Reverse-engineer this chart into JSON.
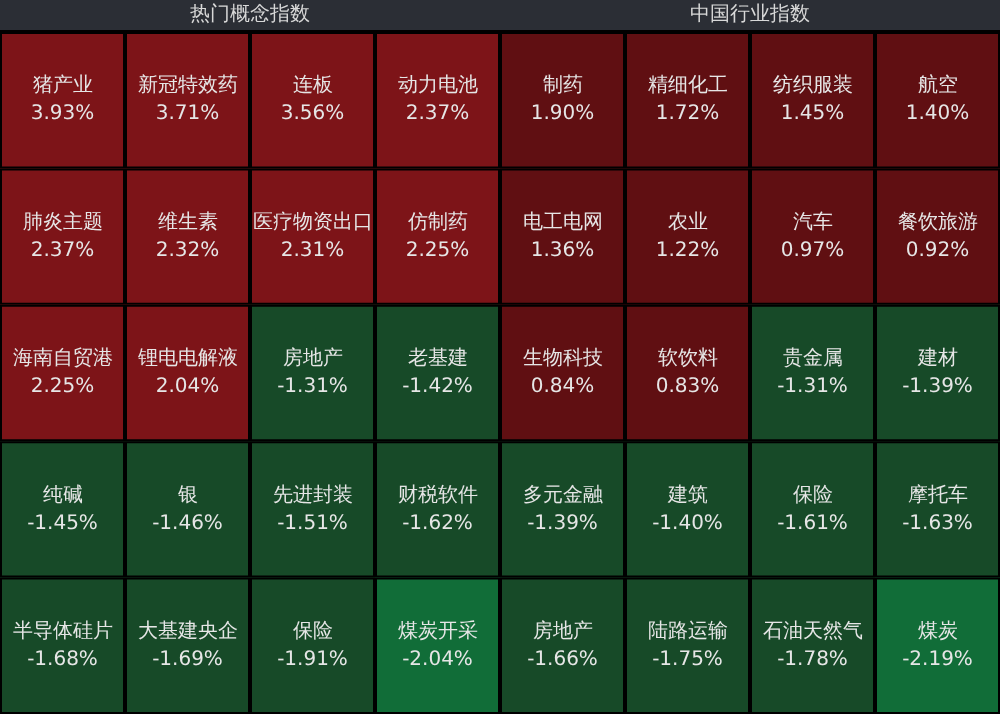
{
  "chart_data": [
    {
      "type": "other",
      "title": "热门概念指数",
      "categories": [
        "猪产业",
        "新冠特效药",
        "连板",
        "动力电池",
        "肺炎主题",
        "维生素",
        "医疗物资出口",
        "仿制药",
        "海南自贸港",
        "锂电电解液",
        "房地产",
        "老基建",
        "纯碱",
        "银",
        "先进封装",
        "财税软件",
        "半导体硅片",
        "大基建央企",
        "保险",
        "煤炭开采"
      ],
      "values": [
        3.93,
        3.71,
        3.56,
        2.37,
        2.37,
        2.32,
        2.31,
        2.25,
        2.25,
        2.04,
        -1.31,
        -1.42,
        -1.45,
        -1.46,
        -1.51,
        -1.62,
        -1.68,
        -1.69,
        -1.91,
        -2.04
      ],
      "value_labels": [
        "3.93%",
        "3.71%",
        "3.56%",
        "2.37%",
        "2.37%",
        "2.32%",
        "2.31%",
        "2.25%",
        "2.25%",
        "2.04%",
        "-1.31%",
        "-1.42%",
        "-1.45%",
        "-1.46%",
        "-1.51%",
        "-1.62%",
        "-1.68%",
        "-1.69%",
        "-1.91%",
        "-2.04%"
      ],
      "colors": [
        "#7d1418",
        "#7d1418",
        "#7d1418",
        "#7d1418",
        "#7d1418",
        "#7d1418",
        "#7d1418",
        "#7d1418",
        "#7d1418",
        "#7d1418",
        "#174a28",
        "#174a28",
        "#174a28",
        "#174a28",
        "#174a28",
        "#174a28",
        "#174a28",
        "#174a28",
        "#174a28",
        "#116d38"
      ]
    },
    {
      "type": "other",
      "title": "中国行业指数",
      "categories": [
        "制药",
        "精细化工",
        "纺织服装",
        "航空",
        "电工电网",
        "农业",
        "汽车",
        "餐饮旅游",
        "生物科技",
        "软饮料",
        "贵金属",
        "建材",
        "多元金融",
        "建筑",
        "保险",
        "摩托车",
        "房地产",
        "陆路运输",
        "石油天然气",
        "煤炭"
      ],
      "values": [
        1.9,
        1.72,
        1.45,
        1.4,
        1.36,
        1.22,
        0.97,
        0.92,
        0.84,
        0.83,
        -1.31,
        -1.39,
        -1.39,
        -1.4,
        -1.61,
        -1.63,
        -1.66,
        -1.75,
        -1.78,
        -2.19
      ],
      "value_labels": [
        "1.90%",
        "1.72%",
        "1.45%",
        "1.40%",
        "1.36%",
        "1.22%",
        "0.97%",
        "0.92%",
        "0.84%",
        "0.83%",
        "-1.31%",
        "-1.39%",
        "-1.39%",
        "-1.40%",
        "-1.61%",
        "-1.63%",
        "-1.66%",
        "-1.75%",
        "-1.78%",
        "-2.19%"
      ],
      "colors": [
        "#600f12",
        "#600f12",
        "#600f12",
        "#600f12",
        "#600f12",
        "#600f12",
        "#600f12",
        "#600f12",
        "#600f12",
        "#600f12",
        "#174a28",
        "#174a28",
        "#174a28",
        "#174a28",
        "#174a28",
        "#174a28",
        "#174a28",
        "#174a28",
        "#174a28",
        "#116d38"
      ]
    }
  ]
}
